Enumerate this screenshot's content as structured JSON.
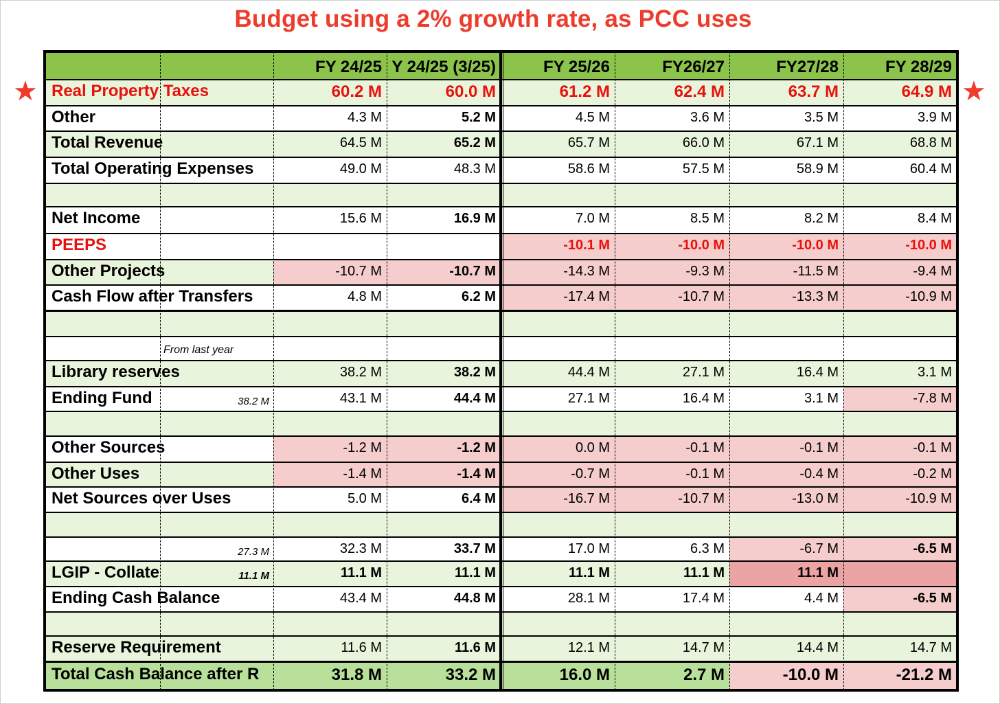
{
  "title": "Budget using a 2% growth rate, as PCC uses",
  "columns": [
    "FY 24/25",
    "Y 24/25 (3/25)",
    "FY 25/26",
    "FY26/27",
    "FY27/28",
    "FY 28/29"
  ],
  "marker_icon": "star-icon",
  "colors": {
    "header_green": "#8cc34b",
    "band_green": "#e8f4dc",
    "total_green": "#b9e09a",
    "pink": "#f5cdcd",
    "dark_pink": "#eca3a3",
    "red_text": "#e8120c",
    "title_red": "#ee3b2b"
  },
  "rows": [
    {
      "label": "Real Property Taxes",
      "sub": "",
      "note": "",
      "values": [
        "60.2 M",
        "60.0 M",
        "61.2 M",
        "62.4 M",
        "63.7 M",
        "64.9 M"
      ]
    },
    {
      "label": "Other",
      "sub": "",
      "note": "",
      "values": [
        "4.3 M",
        "5.2 M",
        "4.5 M",
        "3.6 M",
        "3.5 M",
        "3.9 M"
      ]
    },
    {
      "label": "Total Revenue",
      "sub": "",
      "note": "",
      "values": [
        "64.5 M",
        "65.2 M",
        "65.7 M",
        "66.0 M",
        "67.1 M",
        "68.8 M"
      ]
    },
    {
      "label": "Total Operating Expenses",
      "sub": "",
      "note": "",
      "values": [
        "49.0 M",
        "48.3 M",
        "58.6 M",
        "57.5 M",
        "58.9 M",
        "60.4 M"
      ]
    },
    {
      "label": "",
      "sub": "",
      "note": "",
      "values": [
        "",
        "",
        "",
        "",
        "",
        ""
      ]
    },
    {
      "label": "Net Income",
      "sub": "",
      "note": "",
      "values": [
        "15.6 M",
        "16.9 M",
        "7.0 M",
        "8.5 M",
        "8.2 M",
        "8.4 M"
      ]
    },
    {
      "label": "PEEPS",
      "sub": "",
      "note": "",
      "values": [
        "",
        "",
        "-10.1 M",
        "-10.0 M",
        "-10.0 M",
        "-10.0 M"
      ]
    },
    {
      "label": "Other Projects",
      "sub": "",
      "note": "",
      "values": [
        "-10.7 M",
        "-10.7 M",
        "-14.3 M",
        "-9.3 M",
        "-11.5 M",
        "-9.4 M"
      ]
    },
    {
      "label": "Cash Flow after Transfers",
      "sub": "",
      "note": "",
      "values": [
        "4.8 M",
        "6.2 M",
        "-17.4 M",
        "-10.7 M",
        "-13.3 M",
        "-10.9 M"
      ]
    },
    {
      "label": "",
      "sub": "",
      "note": "",
      "values": [
        "",
        "",
        "",
        "",
        "",
        ""
      ]
    },
    {
      "label": "",
      "sub": "",
      "note": "From last year",
      "values": [
        "",
        "",
        "",
        "",
        "",
        ""
      ]
    },
    {
      "label": "Library reserves",
      "sub": "",
      "note": "",
      "values": [
        "38.2 M",
        "38.2 M",
        "44.4 M",
        "27.1 M",
        "16.4 M",
        "3.1 M"
      ]
    },
    {
      "label": "Ending Fund",
      "sub": "38.2 M",
      "note": "",
      "values": [
        "43.1 M",
        "44.4 M",
        "27.1 M",
        "16.4 M",
        "3.1 M",
        "-7.8 M"
      ]
    },
    {
      "label": "",
      "sub": "",
      "note": "",
      "values": [
        "",
        "",
        "",
        "",
        "",
        ""
      ]
    },
    {
      "label": "Other Sources",
      "sub": "",
      "note": "",
      "values": [
        "-1.2 M",
        "-1.2 M",
        "0.0 M",
        "-0.1 M",
        "-0.1 M",
        "-0.1 M"
      ]
    },
    {
      "label": "Other Uses",
      "sub": "",
      "note": "",
      "values": [
        "-1.4 M",
        "-1.4 M",
        "-0.7 M",
        "-0.1 M",
        "-0.4 M",
        "-0.2 M"
      ]
    },
    {
      "label": "Net Sources over Uses",
      "sub": "",
      "note": "",
      "values": [
        "5.0 M",
        "6.4 M",
        "-16.7 M",
        "-10.7 M",
        "-13.0 M",
        "-10.9 M"
      ]
    },
    {
      "label": "",
      "sub": "",
      "note": "",
      "values": [
        "",
        "",
        "",
        "",
        "",
        ""
      ]
    },
    {
      "label": "",
      "sub": "27.3 M",
      "note": "",
      "values": [
        "32.3 M",
        "33.7 M",
        "17.0 M",
        "6.3 M",
        "-6.7 M",
        "-6.5 M"
      ]
    },
    {
      "label": "LGIP - Collate",
      "sub": "11.1 M",
      "note": "",
      "values": [
        "11.1 M",
        "11.1 M",
        "11.1 M",
        "11.1 M",
        "11.1 M",
        ""
      ]
    },
    {
      "label": "Ending Cash Balance",
      "sub": "",
      "note": "",
      "values": [
        "43.4 M",
        "44.8 M",
        "28.1 M",
        "17.4 M",
        "4.4 M",
        "-6.5 M"
      ]
    },
    {
      "label": "",
      "sub": "",
      "note": "",
      "values": [
        "",
        "",
        "",
        "",
        "",
        ""
      ]
    },
    {
      "label": "Reserve Requirement",
      "sub": "",
      "note": "",
      "values": [
        "11.6 M",
        "11.6 M",
        "12.1 M",
        "14.7 M",
        "14.4 M",
        "14.7 M"
      ]
    },
    {
      "label": "Total Cash Balance after R",
      "sub": "",
      "note": "",
      "values": [
        "31.8 M",
        "33.2 M",
        "16.0 M",
        "2.7 M",
        "-10.0 M",
        "-21.2 M"
      ]
    }
  ]
}
